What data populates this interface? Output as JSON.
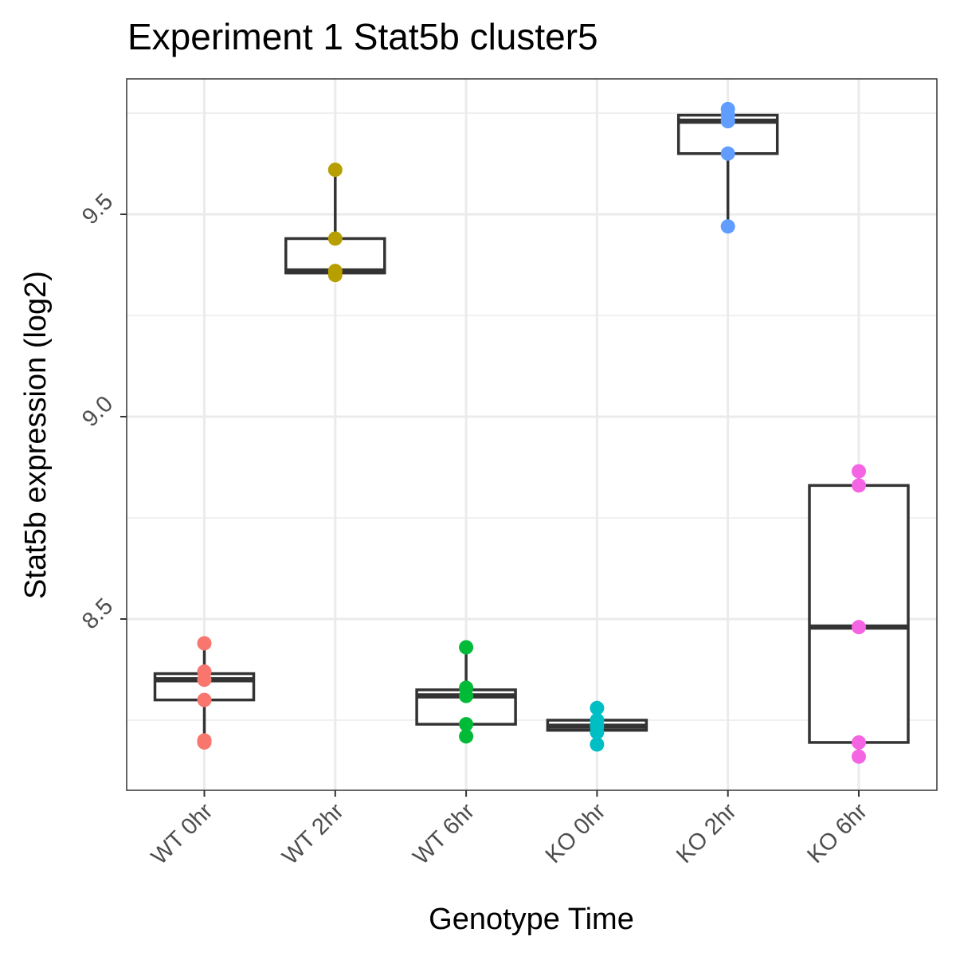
{
  "chart_data": {
    "type": "boxplot",
    "title": "Experiment 1 Stat5b cluster5",
    "xlabel": "Genotype Time",
    "ylabel": "Stat5b expression (log2)",
    "ylim": [
      8.13,
      9.83
    ],
    "yticks": [
      8.5,
      9.0,
      9.5
    ],
    "ytick_labels": [
      "8.5",
      "9.0",
      "9.5"
    ],
    "yminor": [
      8.25,
      8.75,
      9.25,
      9.75
    ],
    "grid": true,
    "legend": "none",
    "categories": [
      "WT 0hr",
      "WT 2hr",
      "WT 6hr",
      "KO 0hr",
      "KO 2hr",
      "KO 6hr"
    ],
    "colors": [
      "#F8766D",
      "#B79F00",
      "#00BA38",
      "#00BFC4",
      "#619CFF",
      "#F564E3"
    ],
    "boxes": [
      {
        "min": 8.2,
        "q1": 8.3,
        "median": 8.35,
        "q3": 8.365,
        "max": 8.44
      },
      {
        "min": 9.35,
        "q1": 9.355,
        "median": 9.36,
        "q3": 9.44,
        "max": 9.61
      },
      {
        "min": 8.21,
        "q1": 8.24,
        "median": 8.31,
        "q3": 8.325,
        "max": 8.43
      },
      {
        "min": 8.19,
        "q1": 8.225,
        "median": 8.235,
        "q3": 8.25,
        "max": 8.28
      },
      {
        "min": 9.47,
        "q1": 9.65,
        "median": 9.73,
        "q3": 9.745,
        "max": 9.76
      },
      {
        "min": 8.16,
        "q1": 8.195,
        "median": 8.48,
        "q3": 8.83,
        "max": 8.86
      }
    ],
    "points": [
      [
        8.44,
        8.37,
        8.35,
        8.3,
        8.2,
        8.195
      ],
      [
        9.61,
        9.44,
        9.36,
        9.35
      ],
      [
        8.43,
        8.33,
        8.31,
        8.24,
        8.21
      ],
      [
        8.28,
        8.25,
        8.235,
        8.22,
        8.19
      ],
      [
        9.76,
        9.745,
        9.73,
        9.65,
        9.47
      ],
      [
        8.865,
        8.83,
        8.48,
        8.195,
        8.16
      ]
    ]
  }
}
